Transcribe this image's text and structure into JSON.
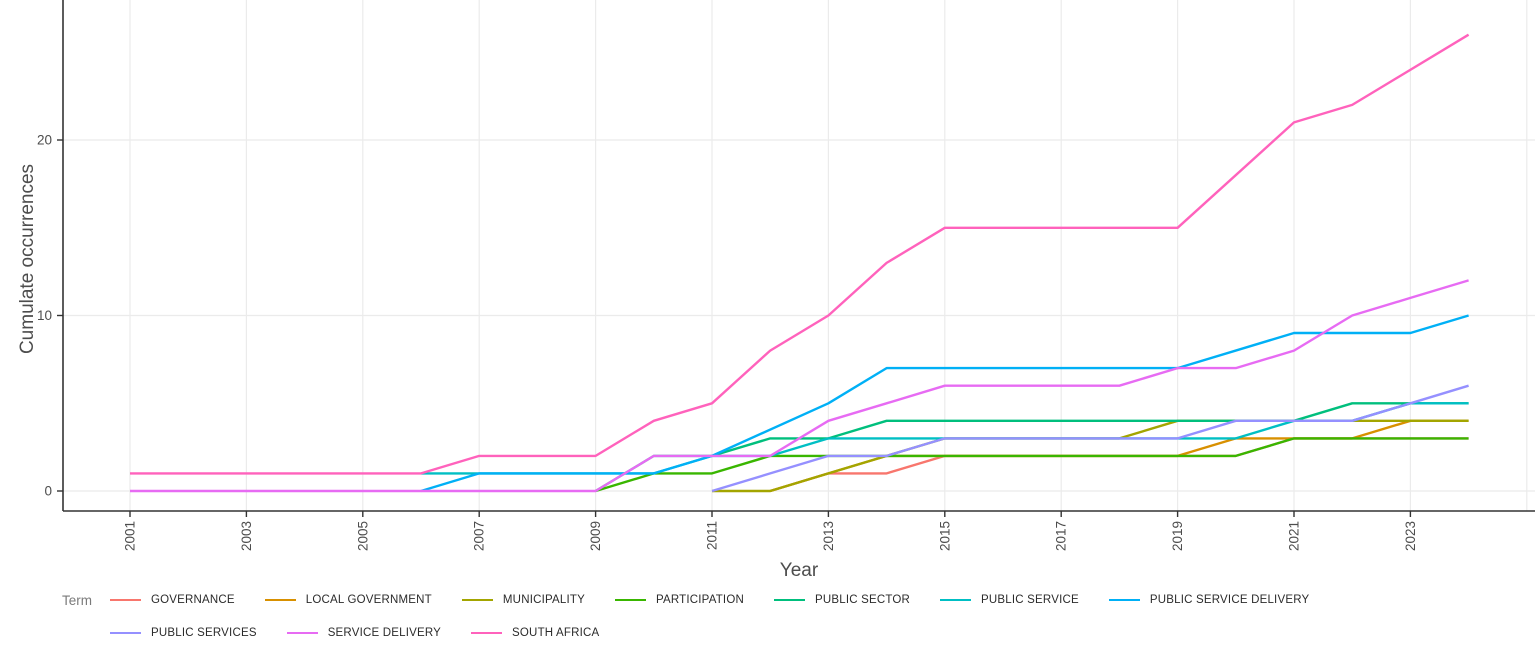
{
  "chart_data": {
    "type": "line",
    "xlabel": "Year",
    "ylabel": "Cumulate occurrences",
    "legend_title": "Term",
    "x_tick_years": [
      2001,
      2003,
      2005,
      2007,
      2009,
      2011,
      2013,
      2015,
      2017,
      2019,
      2021,
      2023
    ],
    "x_gridline_years": [
      2001,
      2003,
      2005,
      2007,
      2009,
      2011,
      2013,
      2015,
      2017,
      2019,
      2021,
      2023,
      2025
    ],
    "y_ticks": [
      0,
      10,
      20
    ],
    "x_range": [
      2001,
      2025
    ],
    "y_range": [
      0,
      26
    ],
    "grid_color": "#ebebeb",
    "axis_color": "#333333",
    "tick_color": "#333333",
    "text_color": "#4d4d4d",
    "legend_position": "bottom",
    "series": [
      {
        "name": "GOVERNANCE",
        "color": "#F8766D",
        "points": [
          [
            2012,
            0
          ],
          [
            2013,
            1
          ],
          [
            2014,
            1
          ],
          [
            2015,
            2
          ],
          [
            2020,
            2
          ],
          [
            2021,
            3
          ],
          [
            2024,
            3
          ]
        ]
      },
      {
        "name": "LOCAL GOVERNMENT",
        "color": "#D89000",
        "points": [
          [
            2012,
            0
          ],
          [
            2013,
            1
          ],
          [
            2014,
            2
          ],
          [
            2019,
            2
          ],
          [
            2020,
            3
          ],
          [
            2022,
            3
          ],
          [
            2023,
            4
          ],
          [
            2024,
            4
          ]
        ]
      },
      {
        "name": "MUNICIPALITY",
        "color": "#A3A500",
        "points": [
          [
            2011,
            0
          ],
          [
            2012,
            0
          ],
          [
            2013,
            1
          ],
          [
            2014,
            2
          ],
          [
            2015,
            3
          ],
          [
            2018,
            3
          ],
          [
            2019,
            4
          ],
          [
            2024,
            4
          ]
        ]
      },
      {
        "name": "PARTICIPATION",
        "color": "#39B600",
        "points": [
          [
            2009,
            0
          ],
          [
            2010,
            1
          ],
          [
            2011,
            1
          ],
          [
            2012,
            2
          ],
          [
            2020,
            2
          ],
          [
            2021,
            3
          ],
          [
            2024,
            3
          ]
        ]
      },
      {
        "name": "PUBLIC SECTOR",
        "color": "#00BF7D",
        "points": [
          [
            2009,
            0
          ],
          [
            2010,
            2
          ],
          [
            2011,
            2
          ],
          [
            2012,
            3
          ],
          [
            2013,
            3
          ],
          [
            2014,
            4
          ],
          [
            2021,
            4
          ],
          [
            2022,
            5
          ],
          [
            2024,
            5
          ]
        ]
      },
      {
        "name": "PUBLIC SERVICE",
        "color": "#00BFC4",
        "points": [
          [
            2006,
            1
          ],
          [
            2010,
            1
          ],
          [
            2011,
            2
          ],
          [
            2012,
            2
          ],
          [
            2013,
            3
          ],
          [
            2020,
            3
          ],
          [
            2021,
            4
          ],
          [
            2022,
            4
          ],
          [
            2023,
            5
          ],
          [
            2024,
            5
          ]
        ]
      },
      {
        "name": "PUBLIC SERVICE DELIVERY",
        "color": "#00B0F6",
        "points": [
          [
            2006,
            0
          ],
          [
            2007,
            1
          ],
          [
            2010,
            1
          ],
          [
            2011,
            2
          ],
          [
            2013,
            5
          ],
          [
            2014,
            7
          ],
          [
            2019,
            7
          ],
          [
            2021,
            9
          ],
          [
            2023,
            9
          ],
          [
            2024,
            10
          ]
        ]
      },
      {
        "name": "PUBLIC SERVICES",
        "color": "#9590FF",
        "points": [
          [
            2011,
            0
          ],
          [
            2012,
            1
          ],
          [
            2013,
            2
          ],
          [
            2014,
            2
          ],
          [
            2015,
            3
          ],
          [
            2019,
            3
          ],
          [
            2020,
            4
          ],
          [
            2022,
            4
          ],
          [
            2023,
            5
          ],
          [
            2024,
            6
          ]
        ]
      },
      {
        "name": "SERVICE DELIVERY",
        "color": "#E76BF3",
        "points": [
          [
            2001,
            0
          ],
          [
            2009,
            0
          ],
          [
            2010,
            2
          ],
          [
            2012,
            2
          ],
          [
            2013,
            4
          ],
          [
            2014,
            5
          ],
          [
            2015,
            6
          ],
          [
            2018,
            6
          ],
          [
            2019,
            7
          ],
          [
            2020,
            7
          ],
          [
            2021,
            8
          ],
          [
            2022,
            10
          ],
          [
            2023,
            11
          ],
          [
            2024,
            12
          ]
        ]
      },
      {
        "name": "SOUTH AFRICA",
        "color": "#FF62BC",
        "points": [
          [
            2001,
            1
          ],
          [
            2006,
            1
          ],
          [
            2007,
            2
          ],
          [
            2009,
            2
          ],
          [
            2010,
            4
          ],
          [
            2011,
            5
          ],
          [
            2012,
            8
          ],
          [
            2013,
            10
          ],
          [
            2014,
            13
          ],
          [
            2015,
            15
          ],
          [
            2019,
            15
          ],
          [
            2021,
            21
          ],
          [
            2022,
            22
          ],
          [
            2024,
            26
          ]
        ]
      }
    ]
  }
}
